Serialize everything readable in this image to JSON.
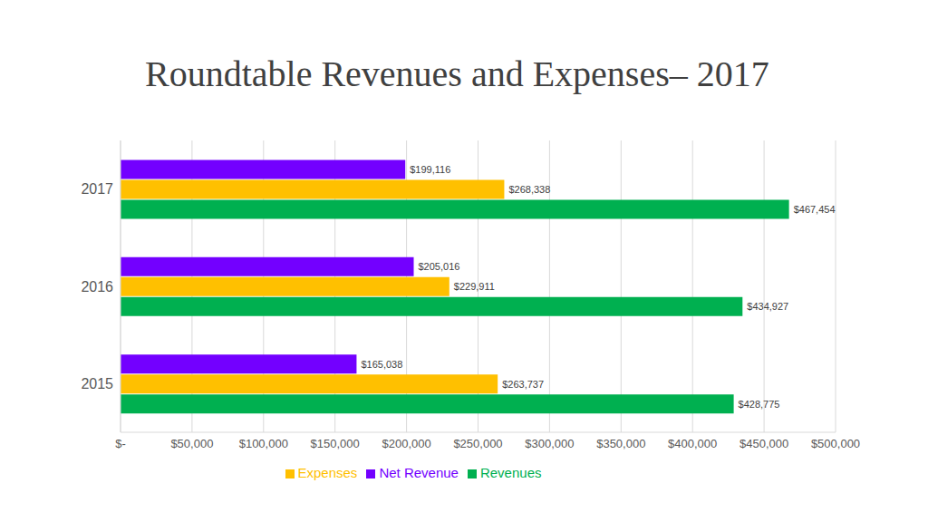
{
  "chart_data": {
    "type": "bar",
    "title": "Roundtable Revenues and Expenses– 2017",
    "orientation": "horizontal",
    "categories": [
      "2017",
      "2016",
      "2015"
    ],
    "series": [
      {
        "name": "Net Revenue",
        "color": "#7300FF",
        "values": [
          199116,
          205016,
          165038
        ],
        "value_labels": [
          "$199,116",
          "$205,016",
          "$165,038"
        ]
      },
      {
        "name": "Expenses",
        "color": "#FFC000",
        "values": [
          268338,
          229911,
          263737
        ],
        "value_labels": [
          "$268,338",
          "$229,911",
          "$263,737"
        ]
      },
      {
        "name": "Revenues",
        "color": "#00B050",
        "values": [
          467454,
          434927,
          428775
        ],
        "value_labels": [
          "$467,454",
          "$434,927",
          "$428,775"
        ]
      }
    ],
    "xlim": [
      0,
      500000
    ],
    "xticks": [
      {
        "value": 0,
        "label": "$-"
      },
      {
        "value": 50000,
        "label": "$50,000"
      },
      {
        "value": 100000,
        "label": "$100,000"
      },
      {
        "value": 150000,
        "label": "$150,000"
      },
      {
        "value": 200000,
        "label": "$200,000"
      },
      {
        "value": 250000,
        "label": "$250,000"
      },
      {
        "value": 300000,
        "label": "$300,000"
      },
      {
        "value": 350000,
        "label": "$350,000"
      },
      {
        "value": 400000,
        "label": "$400,000"
      },
      {
        "value": 450000,
        "label": "$450,000"
      },
      {
        "value": 500000,
        "label": "$500,000"
      }
    ],
    "grid": true,
    "data_labels": true,
    "legend": "bottom"
  }
}
